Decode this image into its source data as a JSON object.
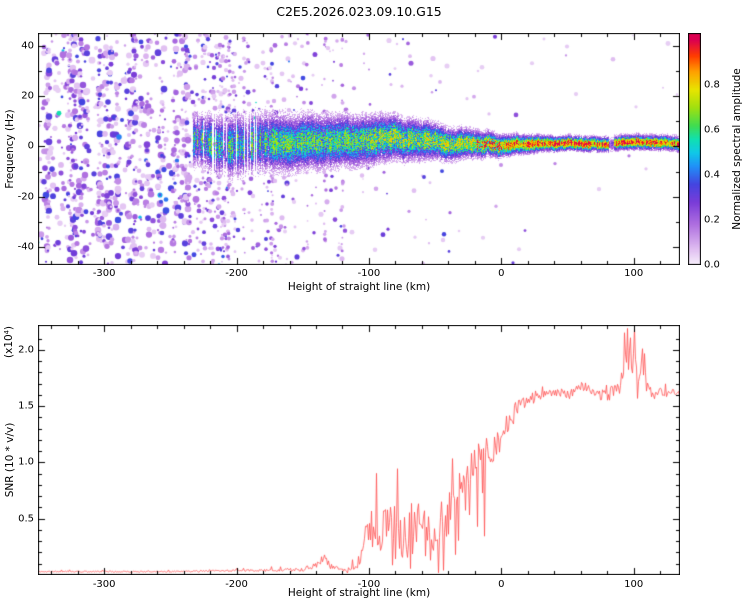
{
  "title": "C2E5.2026.023.09.10.G15",
  "colors": {
    "snr_line": "#ff5252",
    "frame": "#000000",
    "background": "#ffffff"
  },
  "chart_data": [
    {
      "type": "heatmap",
      "title": "C2E5.2026.023.09.10.G15",
      "xlabel": "Height of straight line (km)",
      "ylabel": "Frequency (Hz)",
      "xlim": [
        -350,
        135
      ],
      "ylim": [
        -47,
        45
      ],
      "xticks": [
        -300,
        -200,
        -100,
        0,
        100
      ],
      "yticks": [
        40,
        20,
        0,
        -20,
        -40
      ],
      "grid": false,
      "colorbar": {
        "label": "Normalized spectral amplitude",
        "ticks": [
          "0.0",
          "0.2",
          "0.4",
          "0.6",
          "0.8"
        ],
        "range": [
          0,
          1
        ]
      },
      "colormap_stops": [
        [
          0.0,
          "#f8f2fc"
        ],
        [
          0.08,
          "#ddb8f0"
        ],
        [
          0.18,
          "#b070e0"
        ],
        [
          0.28,
          "#7a3cd8"
        ],
        [
          0.36,
          "#4444e0"
        ],
        [
          0.44,
          "#2090f8"
        ],
        [
          0.5,
          "#10c8e8"
        ],
        [
          0.56,
          "#10e0b0"
        ],
        [
          0.62,
          "#40dc50"
        ],
        [
          0.7,
          "#a0e010"
        ],
        [
          0.78,
          "#e8e400"
        ],
        [
          0.86,
          "#ffa000"
        ],
        [
          0.93,
          "#ff3c00"
        ],
        [
          1.0,
          "#dc0050"
        ]
      ],
      "content_summary": "Broadband purple speckle noise across all frequencies for heights below about -230 km, speckle fading out toward -100 km; a narrow Doppler echo band centered near +2 Hz appears from about -230 km, with blue/cyan-green speckled core, narrowing and strengthening to a saturated yellow/red core with thin purple fringe for heights above 0 km",
      "noise_density_profile": [
        [
          -350,
          0.5
        ],
        [
          -280,
          0.5
        ],
        [
          -235,
          0.44
        ],
        [
          -205,
          0.3
        ],
        [
          -180,
          0.18
        ],
        [
          -150,
          0.11
        ],
        [
          -100,
          0.06
        ],
        [
          -50,
          0.025
        ],
        [
          0,
          0.013
        ],
        [
          135,
          0.009
        ]
      ],
      "band_profile": [
        [
          -233,
          13,
          5,
          0.5
        ],
        [
          -200,
          15,
          6,
          0.55
        ],
        [
          -150,
          13,
          5.5,
          0.55
        ],
        [
          -100,
          11,
          5,
          0.6
        ],
        [
          -60,
          9,
          4,
          0.65
        ],
        [
          -30,
          7,
          3,
          0.7
        ],
        [
          0,
          5,
          2.2,
          0.85
        ],
        [
          40,
          3.5,
          1.5,
          0.92
        ],
        [
          100,
          3.5,
          1.5,
          0.92
        ],
        [
          135,
          3.5,
          1.5,
          0.88
        ]
      ],
      "band_center_hz": 2
    },
    {
      "type": "line",
      "xlabel": "Height of straight line (km)",
      "ylabel": "SNR (10 * v/v)",
      "ylabel_scale": "(x10⁴)",
      "xlim": [
        -350,
        135
      ],
      "ylim": [
        0,
        2.22
      ],
      "xticks": [
        -300,
        -200,
        -100,
        0,
        100
      ],
      "yticks": [
        "0.5",
        "1.0",
        "1.5",
        "2.0"
      ],
      "series": [
        {
          "name": "SNR",
          "color": "#ff5252",
          "x": [
            -350,
            -300,
            -250,
            -200,
            -170,
            -150,
            -140,
            -133,
            -128,
            -120,
            -110,
            -103,
            -100,
            -97,
            -93,
            -90,
            -85,
            -80,
            -75,
            -70,
            -65,
            -60,
            -55,
            -50,
            -45,
            -40,
            -35,
            -30,
            -25,
            -20,
            -15,
            -10,
            -5,
            0,
            5,
            10,
            15,
            20,
            25,
            30,
            40,
            50,
            60,
            70,
            80,
            85,
            90,
            95,
            100,
            103,
            107,
            110,
            115,
            120,
            125,
            130,
            135
          ],
          "y": [
            0.03,
            0.03,
            0.03,
            0.04,
            0.04,
            0.05,
            0.09,
            0.13,
            0.07,
            0.05,
            0.06,
            0.3,
            0.38,
            0.5,
            0.32,
            0.45,
            0.5,
            0.45,
            0.5,
            0.42,
            0.46,
            0.5,
            0.46,
            0.55,
            0.5,
            0.6,
            0.68,
            0.82,
            0.92,
            1.0,
            1.05,
            1.1,
            1.15,
            1.25,
            1.35,
            1.45,
            1.5,
            1.55,
            1.58,
            1.6,
            1.62,
            1.6,
            1.68,
            1.62,
            1.58,
            1.65,
            1.7,
            1.9,
            2.0,
            1.6,
            1.9,
            1.65,
            1.6,
            1.62,
            1.6,
            1.63,
            1.6
          ],
          "noise_amp": [
            0.01,
            0.01,
            0.01,
            0.015,
            0.02,
            0.03,
            0.05,
            0.06,
            0.04,
            0.03,
            0.05,
            0.2,
            0.26,
            0.3,
            0.3,
            0.3,
            0.3,
            0.3,
            0.3,
            0.32,
            0.33,
            0.35,
            0.35,
            0.35,
            0.35,
            0.35,
            0.34,
            0.32,
            0.3,
            0.3,
            0.26,
            0.25,
            0.22,
            0.2,
            0.18,
            0.15,
            0.12,
            0.1,
            0.1,
            0.08,
            0.08,
            0.08,
            0.08,
            0.08,
            0.1,
            0.12,
            0.15,
            0.3,
            0.35,
            0.3,
            0.3,
            0.15,
            0.08,
            0.08,
            0.06,
            0.06,
            0.05
          ]
        }
      ]
    }
  ]
}
